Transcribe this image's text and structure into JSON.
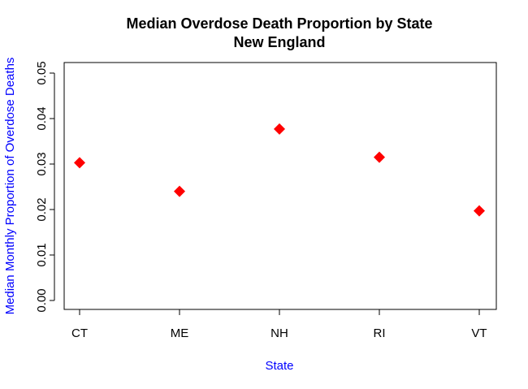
{
  "chart_data": {
    "type": "scatter",
    "title": "Median Overdose Death Proportion by State",
    "subtitle": "New England",
    "xlabel": "State",
    "ylabel": "Median Monthly Proportion of Overdose Deaths",
    "categories": [
      "CT",
      "ME",
      "NH",
      "RI",
      "VT"
    ],
    "values": [
      0.0303,
      0.024,
      0.0377,
      0.0315,
      0.0197
    ],
    "ylim": [
      0.0,
      0.05
    ],
    "yticks": [
      0.0,
      0.01,
      0.02,
      0.03,
      0.04,
      0.05
    ],
    "ytick_labels": [
      "0.00",
      "0.01",
      "0.02",
      "0.03",
      "0.04",
      "0.05"
    ],
    "marker": "diamond",
    "grid": false,
    "colors": {
      "point": "#ff0000",
      "axis_label": "#0000ff",
      "axis": "#000000"
    }
  }
}
